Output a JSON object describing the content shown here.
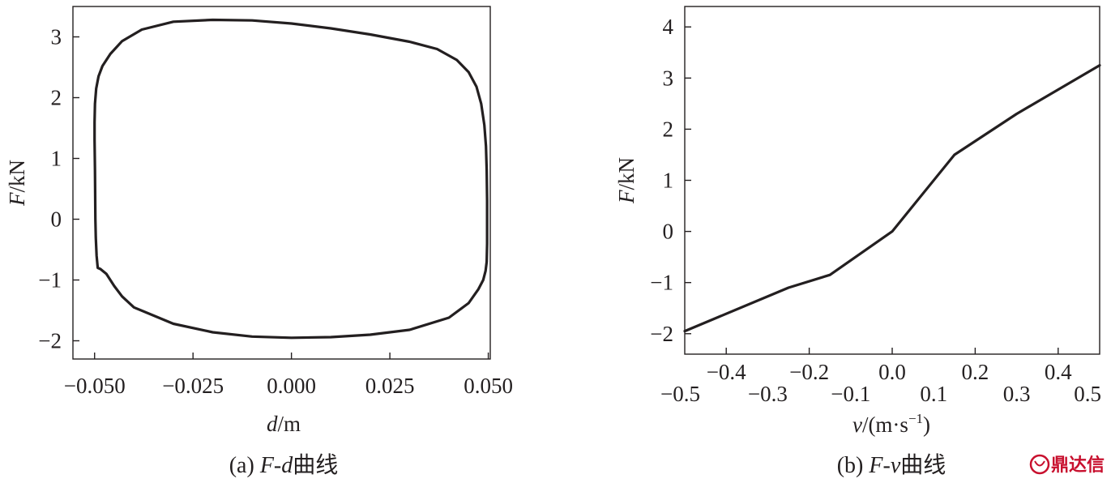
{
  "chart_data": [
    {
      "type": "line",
      "caption": {
        "prefix": "(a) ",
        "var": "F-d",
        "suffix": "曲线"
      },
      "ylabel": {
        "var": "F",
        "unit": "/kN"
      },
      "xlabel": {
        "var": "d",
        "unit": "/m"
      },
      "xlim": [
        -0.0555,
        0.0505
      ],
      "ylim": [
        -2.3,
        3.5
      ],
      "xticks": [
        -0.05,
        -0.025,
        0.0,
        0.025,
        0.05
      ],
      "xtick_labels": [
        "−0.050",
        "−0.025",
        "0.000",
        "0.025",
        "0.050"
      ],
      "yticks": [
        -2,
        -1,
        0,
        1,
        2,
        3
      ],
      "ytick_labels": [
        "−2",
        "−1",
        "0",
        "1",
        "2",
        "3"
      ],
      "grid": false,
      "series": [
        {
          "x": [
            -0.0498,
            -0.0499,
            -0.05,
            -0.05,
            -0.0499,
            -0.0496,
            -0.049,
            -0.048,
            -0.046,
            -0.043,
            -0.038,
            -0.03,
            -0.02,
            -0.01,
            0.0,
            0.01,
            0.02,
            0.03,
            0.037,
            0.042,
            0.045,
            0.047,
            0.0482,
            0.049,
            0.0494,
            0.0496,
            0.0497,
            0.0497,
            0.0496,
            0.0493,
            0.0487,
            0.0475,
            0.045,
            0.04,
            0.03,
            0.02,
            0.01,
            0.0,
            -0.01,
            -0.02,
            -0.03,
            -0.04,
            -0.043,
            -0.045,
            -0.047,
            -0.0485,
            -0.0492,
            -0.0495,
            -0.0497,
            -0.0498
          ],
          "y": [
            0.0,
            0.8,
            1.3,
            1.6,
            1.9,
            2.15,
            2.35,
            2.52,
            2.72,
            2.93,
            3.12,
            3.25,
            3.28,
            3.27,
            3.22,
            3.14,
            3.04,
            2.92,
            2.8,
            2.62,
            2.42,
            2.18,
            1.9,
            1.55,
            1.2,
            0.8,
            0.3,
            -0.4,
            -0.7,
            -0.85,
            -1.0,
            -1.15,
            -1.38,
            -1.62,
            -1.82,
            -1.9,
            -1.94,
            -1.95,
            -1.93,
            -1.86,
            -1.72,
            -1.45,
            -1.27,
            -1.1,
            -0.9,
            -0.82,
            -0.8,
            -0.6,
            -0.3,
            0.0
          ]
        }
      ]
    },
    {
      "type": "line",
      "caption": {
        "prefix": "(b) ",
        "var": "F-v",
        "suffix": "曲线"
      },
      "ylabel": {
        "var": "F",
        "unit": "/kN"
      },
      "xlabel": {
        "var": "v",
        "unit": "/(m·s",
        "sup": "−1",
        "close": ")"
      },
      "xlim": [
        -0.5,
        0.5
      ],
      "ylim": [
        -2.4,
        4.4
      ],
      "xticks": [
        -0.4,
        -0.2,
        0.0,
        0.2,
        0.4
      ],
      "xtick_labels": [
        "−0.4",
        "−0.2",
        "0.0",
        "0.2",
        "0.4"
      ],
      "xticks_lower": [
        -0.5,
        -0.3,
        -0.1,
        0.1,
        0.3,
        0.5
      ],
      "xtick_labels_lower": [
        "−0.5",
        "−0.3",
        "−0.1",
        "0.1",
        "0.3",
        "0.5"
      ],
      "yticks": [
        -2,
        -1,
        0,
        1,
        2,
        3,
        4
      ],
      "ytick_labels": [
        "−2",
        "−1",
        "0",
        "1",
        "2",
        "3",
        "4"
      ],
      "grid": false,
      "series": [
        {
          "x": [
            -0.5,
            -0.25,
            -0.15,
            0.0,
            0.15,
            0.3,
            0.5
          ],
          "y": [
            -1.95,
            -1.1,
            -0.85,
            0.0,
            1.5,
            2.3,
            3.25
          ]
        }
      ]
    }
  ],
  "watermark": {
    "text": "鼎达信",
    "color": "#c8102e"
  }
}
